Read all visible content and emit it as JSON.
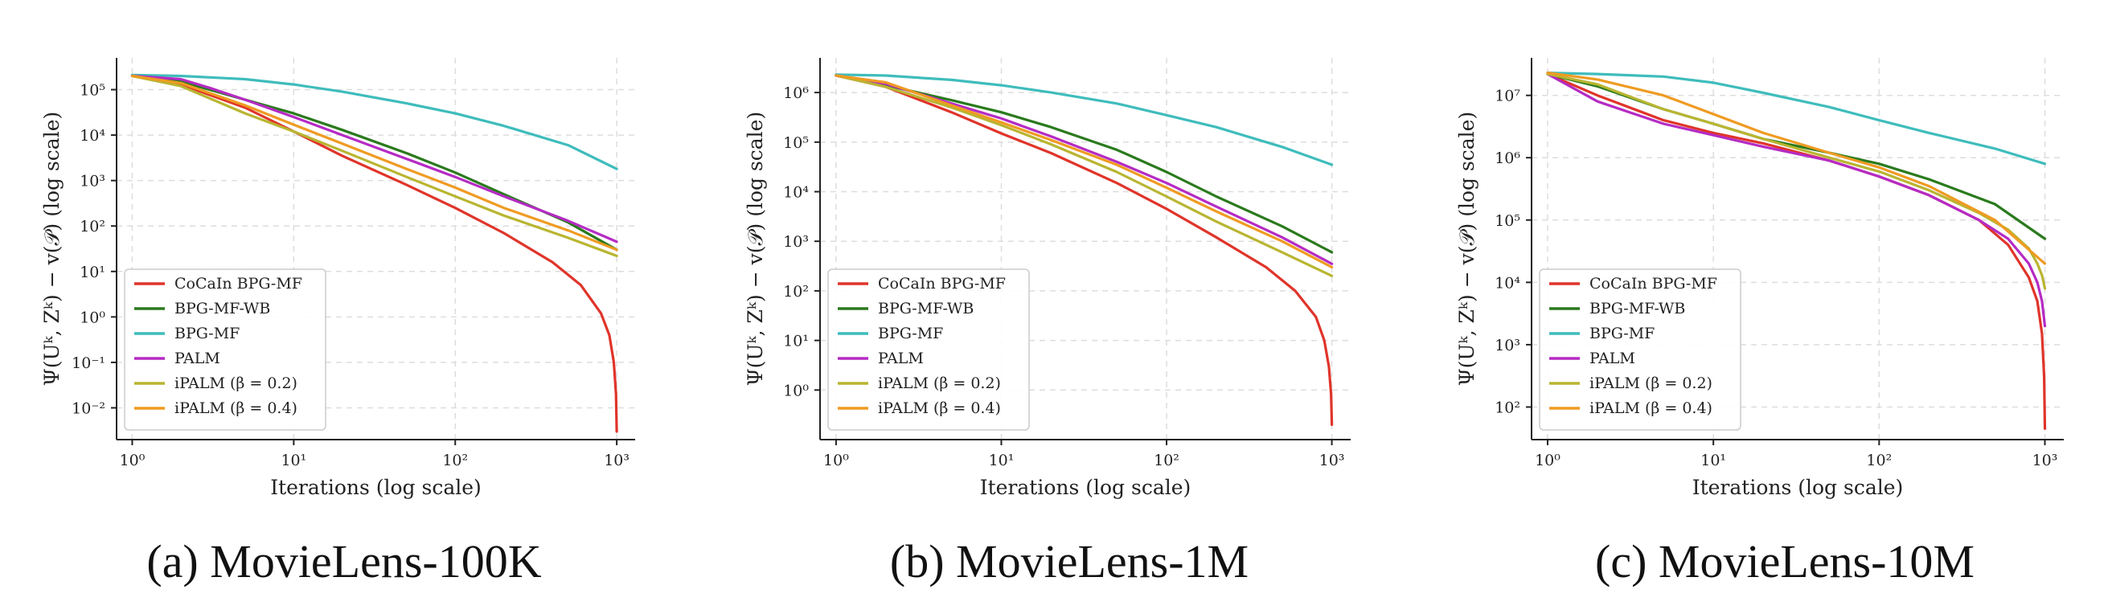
{
  "chart_data": [
    {
      "type": "line",
      "caption": "(a) MovieLens-100K",
      "xlabel": "Iterations (log scale)",
      "ylabel": "Ψ(Uᵏ, Zᵏ) − v(𝒫) (log scale)",
      "xscale": "log",
      "yscale": "log",
      "xlim": [
        0.8,
        1300
      ],
      "ylim": [
        0.002,
        500000
      ],
      "xticks": [
        {
          "value": 1,
          "label": "10⁰"
        },
        {
          "value": 10,
          "label": "10¹"
        },
        {
          "value": 100,
          "label": "10²"
        },
        {
          "value": 1000,
          "label": "10³"
        }
      ],
      "yticks": [
        {
          "value": 0.01,
          "label": "10⁻²"
        },
        {
          "value": 0.1,
          "label": "10⁻¹"
        },
        {
          "value": 1,
          "label": "10⁰"
        },
        {
          "value": 10,
          "label": "10¹"
        },
        {
          "value": 100,
          "label": "10²"
        },
        {
          "value": 1000,
          "label": "10³"
        },
        {
          "value": 10000,
          "label": "10⁴"
        },
        {
          "value": 100000,
          "label": "10⁵"
        }
      ],
      "grid": true,
      "legend": "lower-left",
      "series": [
        {
          "name": "CoCaIn BPG-MF",
          "color": "#e0342a",
          "x": [
            1,
            2,
            5,
            10,
            20,
            50,
            100,
            200,
            400,
            600,
            800,
            900,
            960,
            990,
            1000
          ],
          "y": [
            200000,
            130000,
            40000,
            12000,
            3500,
            800,
            250,
            70,
            16,
            5,
            1.2,
            0.4,
            0.1,
            0.02,
            0.003
          ]
        },
        {
          "name": "BPG-MF-WB",
          "color": "#2a7a1d",
          "x": [
            1,
            2,
            3,
            5,
            10,
            20,
            50,
            100,
            200,
            500,
            1000
          ],
          "y": [
            200000,
            150000,
            100000,
            60000,
            30000,
            13000,
            4000,
            1500,
            500,
            120,
            30
          ]
        },
        {
          "name": "BPG-MF",
          "color": "#3fbcbc",
          "x": [
            1,
            2,
            5,
            10,
            20,
            50,
            100,
            200,
            500,
            1000
          ],
          "y": [
            210000,
            200000,
            170000,
            130000,
            90000,
            50000,
            30000,
            16000,
            6000,
            1800
          ]
        },
        {
          "name": "PALM",
          "color": "#b52bc4",
          "x": [
            1,
            2,
            3,
            5,
            10,
            20,
            50,
            100,
            200,
            500,
            1000
          ],
          "y": [
            200000,
            170000,
            110000,
            60000,
            25000,
            10000,
            3000,
            1200,
            450,
            130,
            45
          ]
        },
        {
          "name": "iPALM (β = 0.2)",
          "color": "#b9b531",
          "x": [
            1,
            2,
            5,
            10,
            20,
            50,
            100,
            200,
            500,
            1000
          ],
          "y": [
            200000,
            120000,
            30000,
            12000,
            4500,
            1200,
            450,
            170,
            55,
            22
          ]
        },
        {
          "name": "iPALM (β = 0.4)",
          "color": "#ef9b22",
          "x": [
            1,
            2,
            5,
            10,
            20,
            50,
            100,
            200,
            500,
            1000
          ],
          "y": [
            200000,
            140000,
            45000,
            17000,
            6500,
            1800,
            700,
            250,
            80,
            30
          ]
        }
      ]
    },
    {
      "type": "line",
      "caption": "(b) MovieLens-1M",
      "xlabel": "Iterations (log scale)",
      "ylabel": "Ψ(Uᵏ, Zᵏ) − v(𝒫) (log scale)",
      "xscale": "log",
      "yscale": "log",
      "xlim": [
        0.8,
        1300
      ],
      "ylim": [
        0.1,
        5000000
      ],
      "xticks": [
        {
          "value": 1,
          "label": "10⁰"
        },
        {
          "value": 10,
          "label": "10¹"
        },
        {
          "value": 100,
          "label": "10²"
        },
        {
          "value": 1000,
          "label": "10³"
        }
      ],
      "yticks": [
        {
          "value": 1,
          "label": "10⁰"
        },
        {
          "value": 10,
          "label": "10¹"
        },
        {
          "value": 100,
          "label": "10²"
        },
        {
          "value": 1000,
          "label": "10³"
        },
        {
          "value": 10000,
          "label": "10⁴"
        },
        {
          "value": 100000,
          "label": "10⁵"
        },
        {
          "value": 1000000,
          "label": "10⁶"
        }
      ],
      "grid": true,
      "legend": "lower-left",
      "series": [
        {
          "name": "CoCaIn BPG-MF",
          "color": "#e0342a",
          "x": [
            1,
            2,
            5,
            10,
            20,
            50,
            100,
            200,
            400,
            600,
            800,
            900,
            960,
            990,
            1000
          ],
          "y": [
            2200000,
            1300000,
            400000,
            150000,
            60000,
            15000,
            4500,
            1200,
            300,
            100,
            30,
            10,
            3,
            0.8,
            0.2
          ]
        },
        {
          "name": "BPG-MF-WB",
          "color": "#2a7a1d",
          "x": [
            1,
            2,
            5,
            10,
            20,
            50,
            100,
            200,
            500,
            1000
          ],
          "y": [
            2200000,
            1400000,
            700000,
            400000,
            200000,
            70000,
            25000,
            8000,
            2000,
            600
          ]
        },
        {
          "name": "BPG-MF",
          "color": "#3fbcbc",
          "x": [
            1,
            2,
            5,
            10,
            20,
            50,
            100,
            200,
            500,
            1000
          ],
          "y": [
            2300000,
            2200000,
            1800000,
            1400000,
            1000000,
            600000,
            350000,
            200000,
            80000,
            35000
          ]
        },
        {
          "name": "PALM",
          "color": "#b52bc4",
          "x": [
            1,
            2,
            5,
            10,
            20,
            50,
            100,
            200,
            500,
            1000
          ],
          "y": [
            2200000,
            1500000,
            600000,
            300000,
            130000,
            40000,
            15000,
            5000,
            1200,
            350
          ]
        },
        {
          "name": "iPALM (β = 0.2)",
          "color": "#b9b531",
          "x": [
            1,
            2,
            5,
            10,
            20,
            50,
            100,
            200,
            500,
            1000
          ],
          "y": [
            2200000,
            1300000,
            500000,
            220000,
            90000,
            25000,
            8000,
            2500,
            600,
            200
          ]
        },
        {
          "name": "iPALM (β = 0.4)",
          "color": "#ef9b22",
          "x": [
            1,
            2,
            5,
            10,
            20,
            50,
            100,
            200,
            500,
            1000
          ],
          "y": [
            2200000,
            1600000,
            550000,
            250000,
            110000,
            35000,
            12000,
            4000,
            1000,
            300
          ]
        }
      ]
    },
    {
      "type": "line",
      "caption": "(c) MovieLens-10M",
      "xlabel": "Iterations (log scale)",
      "ylabel": "Ψ(Uᵏ, Zᵏ) − v(𝒫) (log scale)",
      "xscale": "log",
      "yscale": "log",
      "xlim": [
        0.8,
        1300
      ],
      "ylim": [
        30,
        40000000
      ],
      "xticks": [
        {
          "value": 1,
          "label": "10⁰"
        },
        {
          "value": 10,
          "label": "10¹"
        },
        {
          "value": 100,
          "label": "10²"
        },
        {
          "value": 1000,
          "label": "10³"
        }
      ],
      "yticks": [
        {
          "value": 100,
          "label": "10²"
        },
        {
          "value": 1000,
          "label": "10³"
        },
        {
          "value": 10000,
          "label": "10⁴"
        },
        {
          "value": 100000,
          "label": "10⁵"
        },
        {
          "value": 1000000,
          "label": "10⁶"
        },
        {
          "value": 10000000,
          "label": "10⁷"
        }
      ],
      "grid": true,
      "legend": "lower-left",
      "series": [
        {
          "name": "CoCaIn BPG-MF",
          "color": "#e0342a",
          "x": [
            1,
            2,
            5,
            10,
            20,
            50,
            100,
            200,
            400,
            600,
            800,
            900,
            960,
            990,
            1000
          ],
          "y": [
            22000000,
            10000000,
            4000000,
            2500000,
            1700000,
            900000,
            500000,
            250000,
            100000,
            40000,
            12000,
            5000,
            1500,
            300,
            45
          ]
        },
        {
          "name": "BPG-MF-WB",
          "color": "#2a7a1d",
          "x": [
            1,
            2,
            5,
            10,
            20,
            50,
            100,
            200,
            500,
            1000
          ],
          "y": [
            22000000,
            14000000,
            6000000,
            3500000,
            2000000,
            1200000,
            800000,
            450000,
            180000,
            50000
          ]
        },
        {
          "name": "BPG-MF",
          "color": "#3fbcbc",
          "x": [
            1,
            2,
            5,
            10,
            20,
            50,
            100,
            200,
            500,
            1000
          ],
          "y": [
            23000000,
            22000000,
            20000000,
            16000000,
            11000000,
            6500000,
            4000000,
            2500000,
            1400000,
            800000
          ]
        },
        {
          "name": "PALM",
          "color": "#b52bc4",
          "x": [
            1,
            2,
            5,
            10,
            20,
            50,
            100,
            200,
            400,
            600,
            800,
            900,
            960,
            1000
          ],
          "y": [
            22000000,
            8000000,
            3500000,
            2300000,
            1500000,
            900000,
            500000,
            250000,
            100000,
            50000,
            20000,
            10000,
            5000,
            2000
          ]
        },
        {
          "name": "iPALM (β = 0.2)",
          "color": "#b9b531",
          "x": [
            1,
            2,
            5,
            10,
            20,
            50,
            100,
            200,
            400,
            600,
            800,
            900,
            960,
            1000
          ],
          "y": [
            22000000,
            15000000,
            6000000,
            3500000,
            2000000,
            1000000,
            600000,
            300000,
            130000,
            70000,
            35000,
            20000,
            13000,
            8000
          ]
        },
        {
          "name": "iPALM (β = 0.4)",
          "color": "#ef9b22",
          "x": [
            1,
            2,
            5,
            10,
            20,
            50,
            100,
            200,
            500,
            1000
          ],
          "y": [
            23000000,
            18000000,
            10000000,
            5000000,
            2500000,
            1200000,
            700000,
            350000,
            100000,
            20000
          ]
        }
      ]
    }
  ]
}
